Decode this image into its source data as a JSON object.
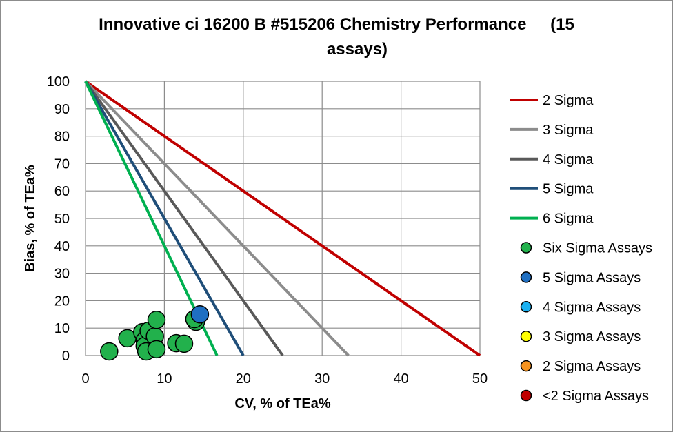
{
  "chart_data": {
    "type": "scatter",
    "title_line1": "Innovative ci 16200 B #515206 Chemistry Performance",
    "title_line2": "(15",
    "title_line3": "assays)",
    "xlabel": "CV, % of TEa%",
    "ylabel": "Bias, % of TEa%",
    "xlim": [
      0,
      50
    ],
    "ylim": [
      0,
      100
    ],
    "xticks": [
      0,
      10,
      20,
      30,
      40,
      50
    ],
    "yticks": [
      0,
      10,
      20,
      30,
      40,
      50,
      60,
      70,
      80,
      90,
      100
    ],
    "grid": true,
    "legend_position": "right",
    "sigma_lines": [
      {
        "name": "2 Sigma",
        "sigma": 2,
        "color": "#c00000"
      },
      {
        "name": "3 Sigma",
        "sigma": 3,
        "color": "#8c8c8c"
      },
      {
        "name": "4 Sigma",
        "sigma": 4,
        "color": "#595959"
      },
      {
        "name": "5 Sigma",
        "sigma": 5,
        "color": "#1f4e79"
      },
      {
        "name": "6 Sigma",
        "sigma": 6,
        "color": "#00b050"
      }
    ],
    "point_series": [
      {
        "name": "Six Sigma Assays",
        "color": "#22b14c",
        "points": [
          [
            3.0,
            1.5
          ],
          [
            5.3,
            6.3
          ],
          [
            7.2,
            8.5
          ],
          [
            7.5,
            5.5
          ],
          [
            7.5,
            3.5
          ],
          [
            7.7,
            1.5
          ],
          [
            8.0,
            9.0
          ],
          [
            8.8,
            7.0
          ],
          [
            9.0,
            13.0
          ],
          [
            9.0,
            2.3
          ],
          [
            11.5,
            4.5
          ],
          [
            12.5,
            4.3
          ],
          [
            14.0,
            12.3
          ],
          [
            13.8,
            13.3
          ]
        ]
      },
      {
        "name": "5 Sigma Assays",
        "color": "#1f6fc2",
        "points": [
          [
            14.5,
            15.0
          ]
        ]
      },
      {
        "name": "4 Sigma Assays",
        "color": "#1ab0f0",
        "points": []
      },
      {
        "name": "3 Sigma Assays",
        "color": "#ffff00",
        "points": []
      },
      {
        "name": "2 Sigma Assays",
        "color": "#f7931e",
        "points": []
      },
      {
        "name": "<2 Sigma Assays",
        "color": "#c00000",
        "points": []
      }
    ]
  }
}
